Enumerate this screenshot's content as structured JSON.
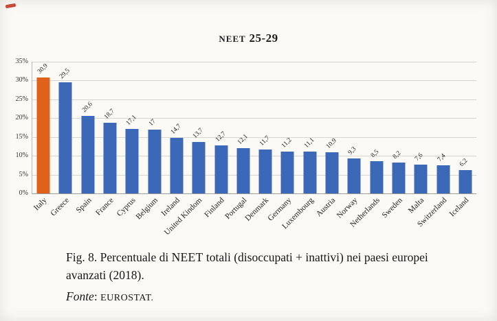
{
  "page": {
    "title_neet": "NEET",
    "title_rest": " 25-29",
    "caption": {
      "fig_prefix": "Fig. 8. Percentuale di ",
      "neet": "NEET",
      "rest": " totali (disoccupati + inattivi) nei paesi europei avanzati (2018).",
      "fonte_label": "Fonte",
      "fonte_sep": ": ",
      "fonte_value": "EUROSTAT."
    }
  },
  "chart_data": {
    "type": "bar",
    "title": "NEET 25-29",
    "categories": [
      "Italy",
      "Greece",
      "Spain",
      "France",
      "Cyprus",
      "Belgium",
      "Ireland",
      "United Kindom",
      "Finland",
      "Portugal",
      "Denmark",
      "Germany",
      "Luxembourg",
      "Austria",
      "Norway",
      "Netherlands",
      "Sweden",
      "Malta",
      "Switzerland",
      "Iceland"
    ],
    "values": [
      30.9,
      29.5,
      20.6,
      18.7,
      17.1,
      17,
      14.7,
      13.7,
      12.7,
      12.1,
      11.7,
      11.2,
      11.1,
      10.9,
      9.3,
      8.5,
      8.2,
      7.6,
      7.4,
      6.2
    ],
    "value_labels": [
      "30,9",
      "29,5",
      "20,6",
      "18,7",
      "17,1",
      "17",
      "14,7",
      "13,7",
      "12,7",
      "12,1",
      "11,7",
      "11,2",
      "11,1",
      "10,9",
      "9,3",
      "8,5",
      "8,2",
      "7,6",
      "7,4",
      "6,2"
    ],
    "xlabel": "",
    "ylabel": "",
    "ylim": [
      0,
      35
    ],
    "yticks": [
      "0%",
      "5%",
      "10%",
      "15%",
      "20%",
      "25%",
      "30%",
      "35%"
    ],
    "grid": true,
    "legend": "none",
    "bar_color": "#3c68b8",
    "highlight_color": "#e0621a",
    "highlight_index": 0
  }
}
